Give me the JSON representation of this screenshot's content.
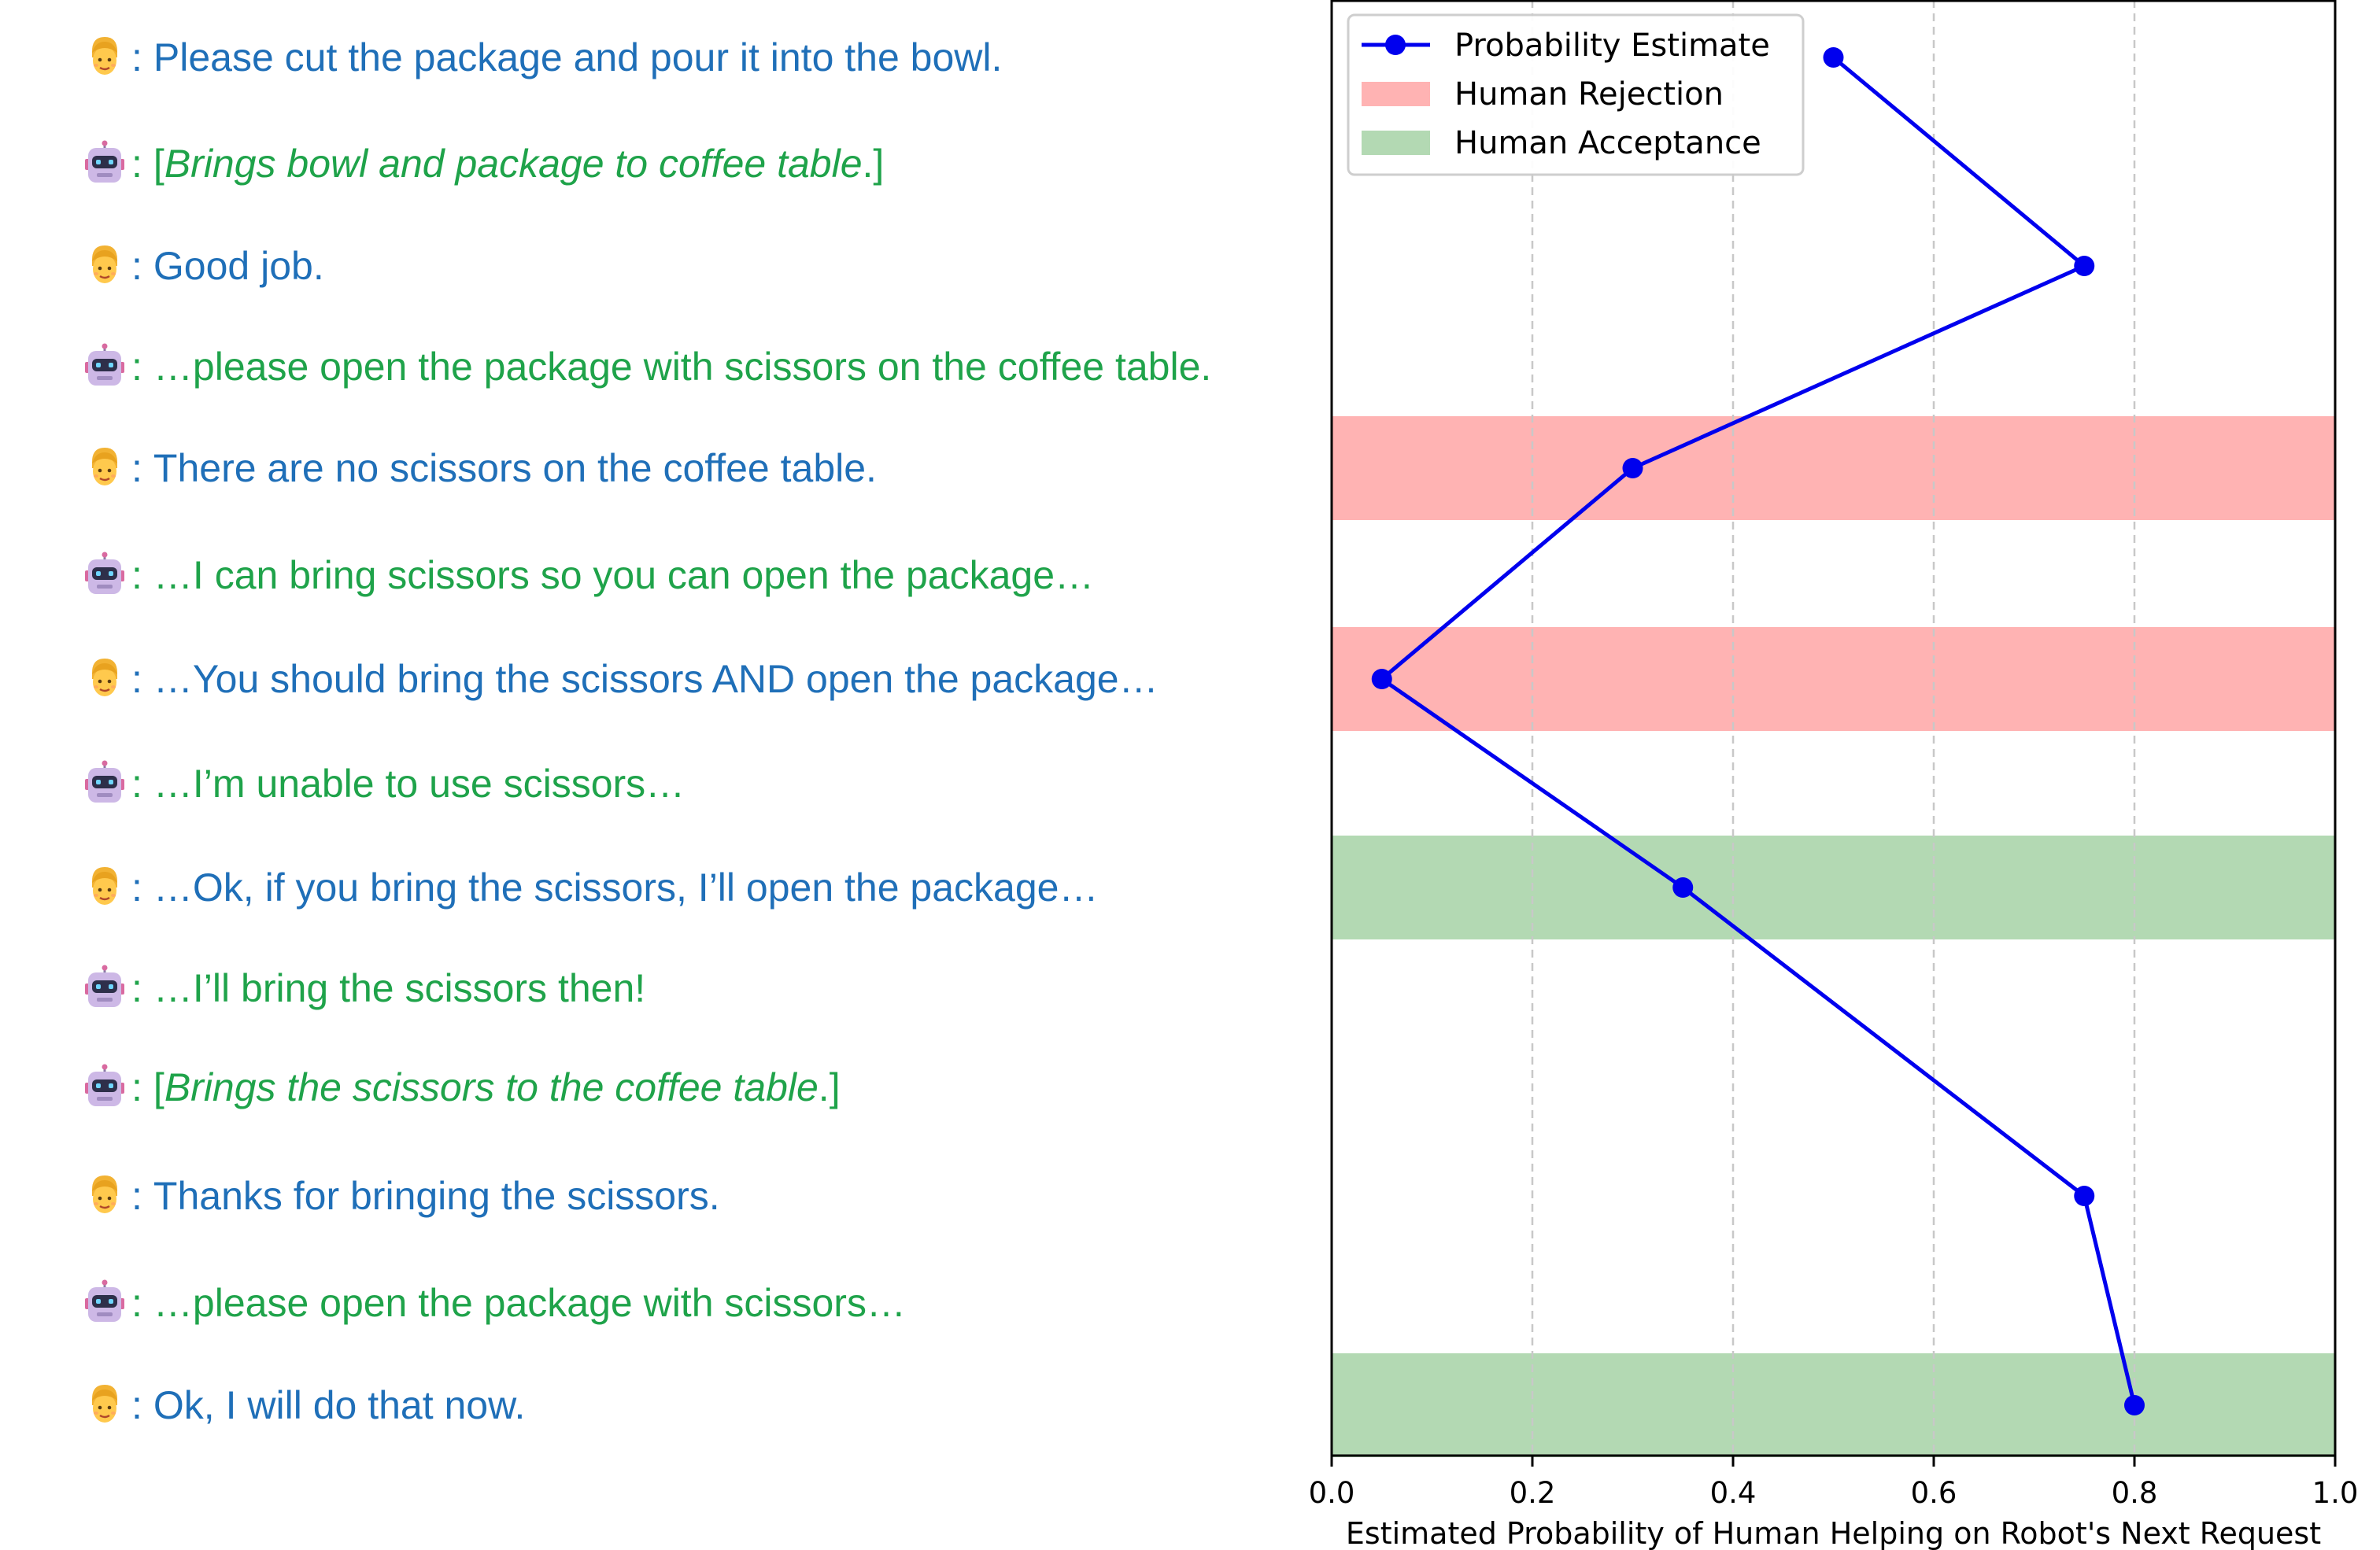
{
  "dialogue": [
    {
      "speaker": "human",
      "avatar": "person-icon",
      "text": "Please cut the package and pour it into the bowl."
    },
    {
      "speaker": "robot",
      "avatar": "robot-icon",
      "text": "Brings bowl and package to coffee table",
      "action": true
    },
    {
      "speaker": "human",
      "avatar": "person-icon",
      "text": "Good job."
    },
    {
      "speaker": "robot",
      "avatar": "robot-icon",
      "text": "…please open the package with scissors on the coffee table."
    },
    {
      "speaker": "human",
      "avatar": "person-icon",
      "text": "There are no scissors on the coffee table."
    },
    {
      "speaker": "robot",
      "avatar": "robot-icon",
      "text": "…I can bring scissors so you can open the package…"
    },
    {
      "speaker": "human",
      "avatar": "person-icon",
      "text": "…You should bring the scissors AND open the package…"
    },
    {
      "speaker": "robot",
      "avatar": "robot-icon",
      "text": "…I’m unable to use scissors…"
    },
    {
      "speaker": "human",
      "avatar": "person-icon",
      "text": "…Ok, if you bring the scissors, I’ll open the package…"
    },
    {
      "speaker": "robot",
      "avatar": "robot-icon",
      "text": "…I’ll bring the scissors then!"
    },
    {
      "speaker": "robot",
      "avatar": "robot-icon",
      "text": "Brings the scissors to the coffee table",
      "action": true
    },
    {
      "speaker": "human",
      "avatar": "person-icon",
      "text": "Thanks for bringing the scissors."
    },
    {
      "speaker": "robot",
      "avatar": "robot-icon",
      "text": "…please open the package with scissors…"
    },
    {
      "speaker": "human",
      "avatar": "person-icon",
      "text": "Ok, I will do that now."
    }
  ],
  "chart_data": {
    "type": "line",
    "orientation": "horizontal",
    "xlabel": "Estimated Probability of Human Helping on Robot's Next Request",
    "xlim": [
      0,
      1
    ],
    "xticks": [
      "0.0",
      "0.2",
      "0.4",
      "0.6",
      "0.8",
      "1.0"
    ],
    "grid": "vertical-dashed",
    "legend_position": "top-left",
    "series": [
      {
        "name": "Probability Estimate",
        "color": "#0000ee",
        "points": [
          {
            "turn": 0,
            "value": 0.5
          },
          {
            "turn": 2,
            "value": 0.75
          },
          {
            "turn": 4,
            "value": 0.3
          },
          {
            "turn": 6,
            "value": 0.05
          },
          {
            "turn": 8,
            "value": 0.35
          },
          {
            "turn": 11,
            "value": 0.75
          },
          {
            "turn": 13,
            "value": 0.8
          }
        ]
      }
    ],
    "bands": [
      {
        "turn": 4,
        "kind": "rejection"
      },
      {
        "turn": 6,
        "kind": "rejection"
      },
      {
        "turn": 8,
        "kind": "acceptance"
      },
      {
        "turn": 13,
        "kind": "acceptance"
      }
    ],
    "legend": [
      {
        "key": "estimate",
        "label": "Probability Estimate",
        "color": "#0000ee"
      },
      {
        "key": "rejection",
        "label": "Human Rejection",
        "color": "#ffb3b3"
      },
      {
        "key": "acceptance",
        "label": "Human Acceptance",
        "color": "#b3d9b3"
      }
    ]
  }
}
